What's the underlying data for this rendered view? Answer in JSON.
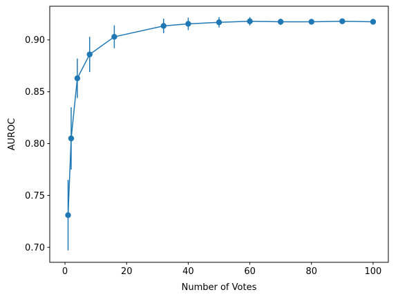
{
  "chart_data": {
    "type": "line",
    "title": "",
    "xlabel": "Number of Votes",
    "ylabel": "AUROC",
    "xlim": [
      -4.95,
      104.95
    ],
    "ylim": [
      0.6855,
      0.9325
    ],
    "x_ticks": [
      0,
      20,
      40,
      60,
      80,
      100
    ],
    "y_ticks": [
      0.7,
      0.75,
      0.8,
      0.85,
      0.9
    ],
    "y_tick_format": 2,
    "grid": false,
    "legend": "none",
    "colors": {
      "series": "#1f77b4"
    },
    "series": [
      {
        "x": [
          1,
          2,
          4,
          8,
          16,
          32,
          40,
          50,
          60,
          70,
          80,
          90,
          100
        ],
        "y": [
          0.731,
          0.805,
          0.863,
          0.886,
          0.903,
          0.9135,
          0.9155,
          0.917,
          0.918,
          0.9175,
          0.9175,
          0.918,
          0.9175
        ],
        "err": [
          0.034,
          0.03,
          0.019,
          0.017,
          0.011,
          0.007,
          0.006,
          0.005,
          0.004,
          0.003,
          0.002,
          0.002,
          0.002
        ]
      }
    ]
  }
}
